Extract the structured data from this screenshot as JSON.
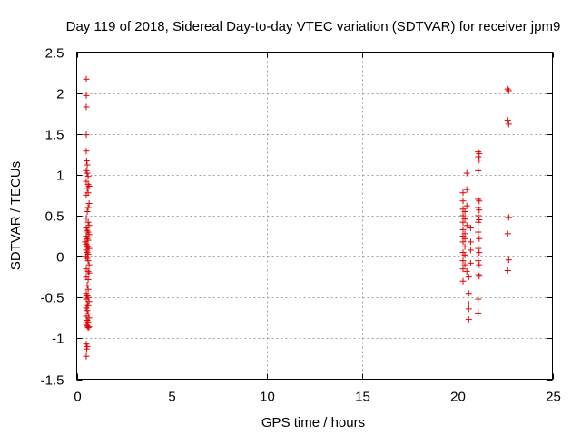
{
  "chart_data": {
    "type": "scatter",
    "title": "Day 119 of 2018, Sidereal Day-to-day VTEC variation (SDTVAR) for receiver jpm9",
    "xlabel": "GPS time / hours",
    "ylabel": "SDTVAR / TECUs",
    "xlim": [
      0,
      25
    ],
    "ylim": [
      -1.5,
      2.5
    ],
    "xticks": [
      0,
      5,
      10,
      15,
      20,
      25
    ],
    "xtick_labels": [
      "0",
      "5",
      "10",
      "15",
      "20",
      "25"
    ],
    "yticks": [
      -1.5,
      -1,
      -0.5,
      0,
      0.5,
      1,
      1.5,
      2,
      2.5
    ],
    "ytick_labels": [
      "-1.5",
      "-1",
      "-0.5",
      "0",
      "0.5",
      "1",
      "1.5",
      "2",
      "2.5"
    ],
    "grid": true,
    "marker": "+",
    "color": "#e00000",
    "series": [
      {
        "name": "SDTVAR",
        "points": [
          [
            0.5,
            2.17
          ],
          [
            0.5,
            1.97
          ],
          [
            0.5,
            1.83
          ],
          [
            0.5,
            1.49
          ],
          [
            0.5,
            1.29
          ],
          [
            0.52,
            1.17
          ],
          [
            0.55,
            1.12
          ],
          [
            0.5,
            1.05
          ],
          [
            0.55,
            1.02
          ],
          [
            0.6,
            0.98
          ],
          [
            0.5,
            0.92
          ],
          [
            0.6,
            0.88
          ],
          [
            0.65,
            0.86
          ],
          [
            0.55,
            0.83
          ],
          [
            0.6,
            0.78
          ],
          [
            0.5,
            0.75
          ],
          [
            0.65,
            0.65
          ],
          [
            0.6,
            0.6
          ],
          [
            0.55,
            0.55
          ],
          [
            0.5,
            0.47
          ],
          [
            0.6,
            0.42
          ],
          [
            0.65,
            0.38
          ],
          [
            0.5,
            0.35
          ],
          [
            0.55,
            0.32
          ],
          [
            0.6,
            0.3
          ],
          [
            0.65,
            0.27
          ],
          [
            0.5,
            0.25
          ],
          [
            0.55,
            0.22
          ],
          [
            0.6,
            0.2
          ],
          [
            0.45,
            0.18
          ],
          [
            0.5,
            0.15
          ],
          [
            0.55,
            0.13
          ],
          [
            0.6,
            0.12
          ],
          [
            0.65,
            0.1
          ],
          [
            0.5,
            0.08
          ],
          [
            0.55,
            0.05
          ],
          [
            0.6,
            0.03
          ],
          [
            0.48,
            0.0
          ],
          [
            0.55,
            -0.02
          ],
          [
            0.6,
            -0.05
          ],
          [
            0.65,
            -0.1
          ],
          [
            0.5,
            -0.15
          ],
          [
            0.6,
            -0.18
          ],
          [
            0.65,
            -0.2
          ],
          [
            0.5,
            -0.25
          ],
          [
            0.6,
            -0.28
          ],
          [
            0.55,
            -0.35
          ],
          [
            0.6,
            -0.4
          ],
          [
            0.5,
            -0.45
          ],
          [
            0.55,
            -0.48
          ],
          [
            0.6,
            -0.5
          ],
          [
            0.5,
            -0.52
          ],
          [
            0.65,
            -0.55
          ],
          [
            0.55,
            -0.58
          ],
          [
            0.6,
            -0.6
          ],
          [
            0.5,
            -0.63
          ],
          [
            0.55,
            -0.66
          ],
          [
            0.6,
            -0.7
          ],
          [
            0.5,
            -0.73
          ],
          [
            0.65,
            -0.75
          ],
          [
            0.55,
            -0.78
          ],
          [
            0.6,
            -0.8
          ],
          [
            0.5,
            -0.83
          ],
          [
            0.55,
            -0.85
          ],
          [
            0.6,
            -0.87
          ],
          [
            0.65,
            -0.86
          ],
          [
            0.5,
            -1.07
          ],
          [
            0.55,
            -1.1
          ],
          [
            0.52,
            -1.13
          ],
          [
            0.5,
            -1.22
          ],
          [
            20.3,
            0.78
          ],
          [
            20.5,
            0.82
          ],
          [
            20.3,
            0.68
          ],
          [
            20.5,
            0.62
          ],
          [
            20.3,
            0.58
          ],
          [
            20.4,
            0.55
          ],
          [
            20.3,
            0.5
          ],
          [
            20.4,
            0.46
          ],
          [
            20.3,
            0.42
          ],
          [
            20.5,
            0.38
          ],
          [
            20.3,
            0.33
          ],
          [
            20.4,
            0.28
          ],
          [
            20.3,
            0.25
          ],
          [
            20.4,
            0.22
          ],
          [
            20.3,
            0.18
          ],
          [
            20.4,
            0.12
          ],
          [
            20.3,
            0.05
          ],
          [
            20.4,
            0.02
          ],
          [
            20.3,
            -0.05
          ],
          [
            20.4,
            -0.1
          ],
          [
            20.3,
            -0.15
          ],
          [
            20.5,
            -0.18
          ],
          [
            20.6,
            -0.25
          ],
          [
            20.3,
            -0.3
          ],
          [
            20.6,
            -0.45
          ],
          [
            20.6,
            -0.58
          ],
          [
            20.6,
            -0.64
          ],
          [
            20.6,
            -0.77
          ],
          [
            20.5,
            1.02
          ],
          [
            20.7,
            0.35
          ],
          [
            20.7,
            0.18
          ],
          [
            20.7,
            0.08
          ],
          [
            20.7,
            -0.08
          ],
          [
            21.1,
            1.28
          ],
          [
            21.15,
            1.26
          ],
          [
            21.1,
            1.22
          ],
          [
            21.15,
            1.18
          ],
          [
            21.1,
            1.05
          ],
          [
            21.1,
            0.7
          ],
          [
            21.15,
            0.68
          ],
          [
            21.1,
            0.6
          ],
          [
            21.15,
            0.57
          ],
          [
            21.1,
            0.5
          ],
          [
            21.15,
            0.45
          ],
          [
            21.1,
            0.42
          ],
          [
            21.1,
            0.3
          ],
          [
            21.15,
            0.22
          ],
          [
            21.1,
            0.1
          ],
          [
            21.15,
            0.05
          ],
          [
            21.1,
            -0.05
          ],
          [
            21.15,
            -0.1
          ],
          [
            21.1,
            -0.22
          ],
          [
            21.15,
            -0.24
          ],
          [
            21.1,
            -0.52
          ],
          [
            21.1,
            -0.69
          ],
          [
            22.65,
            2.05
          ],
          [
            22.7,
            2.03
          ],
          [
            22.65,
            1.67
          ],
          [
            22.7,
            1.62
          ],
          [
            22.7,
            0.48
          ],
          [
            22.65,
            0.28
          ],
          [
            22.7,
            -0.04
          ],
          [
            22.65,
            -0.17
          ]
        ]
      }
    ]
  }
}
